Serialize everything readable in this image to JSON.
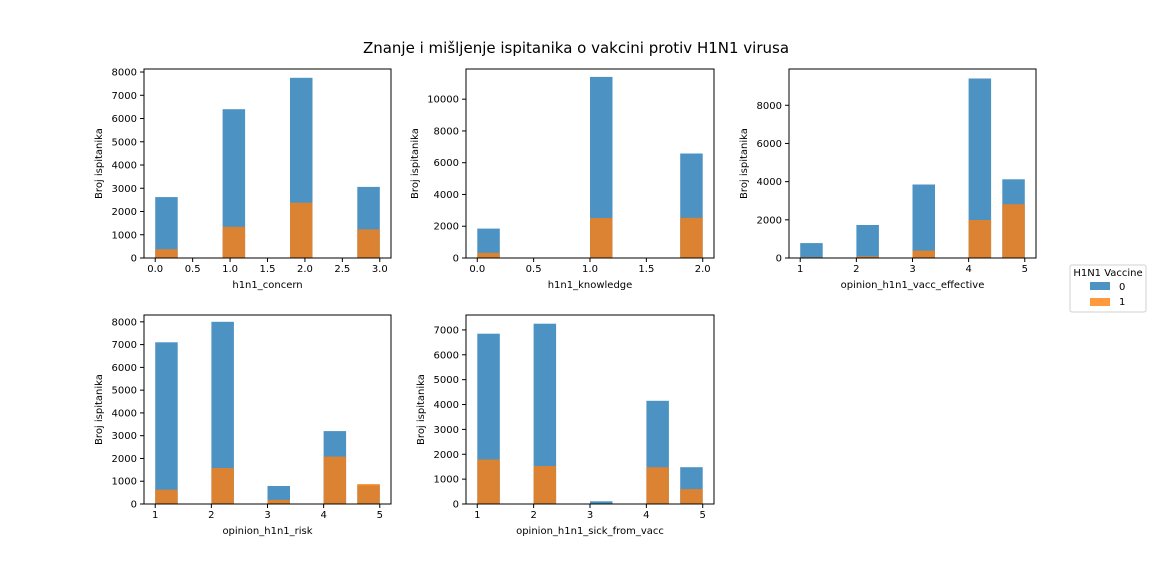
{
  "title": "Znanje i mišljenje ispitanika o vakcini protiv H1N1 virusa",
  "legend": {
    "title": "H1N1 Vaccine",
    "entries": [
      {
        "label": "0",
        "color": "#1f77b4"
      },
      {
        "label": "1",
        "color": "#ff7f0e"
      }
    ]
  },
  "chart_data": [
    {
      "type": "bar",
      "xlabel": "h1n1_concern",
      "ylabel": "Broj ispitanika",
      "xlim": [
        -0.15,
        3.15
      ],
      "ylim": [
        0,
        8130
      ],
      "xticks": [
        0.0,
        0.5,
        1.0,
        1.5,
        2.0,
        2.5,
        3.0
      ],
      "xtick_labels": [
        "0.0",
        "0.5",
        "1.0",
        "1.5",
        "2.0",
        "2.5",
        "3.0"
      ],
      "yticks": [
        0,
        1000,
        2000,
        3000,
        4000,
        5000,
        6000,
        7000,
        8000
      ],
      "ytick_labels": [
        "0",
        "1000",
        "2000",
        "3000",
        "4000",
        "5000",
        "6000",
        "7000",
        "8000"
      ],
      "bar_edges": [
        [
          0.0,
          0.3
        ],
        [
          0.9,
          1.2
        ],
        [
          1.8,
          2.1
        ],
        [
          2.7,
          3.0
        ]
      ],
      "series": [
        {
          "name": "0",
          "values": [
            2620,
            6400,
            7750,
            3060
          ]
        },
        {
          "name": "1",
          "values": [
            380,
            1340,
            2380,
            1230
          ]
        }
      ]
    },
    {
      "type": "bar",
      "xlabel": "h1n1_knowledge",
      "ylabel": "Broj ispitanika",
      "xlim": [
        -0.1,
        2.1
      ],
      "ylim": [
        0,
        11900
      ],
      "xticks": [
        0.0,
        0.5,
        1.0,
        1.5,
        2.0
      ],
      "xtick_labels": [
        "0.0",
        "0.5",
        "1.0",
        "1.5",
        "2.0"
      ],
      "yticks": [
        0,
        2000,
        4000,
        6000,
        8000,
        10000
      ],
      "ytick_labels": [
        "0",
        "2000",
        "4000",
        "6000",
        "8000",
        "10000"
      ],
      "bar_edges": [
        [
          0.0,
          0.2
        ],
        [
          1.0,
          1.2
        ],
        [
          1.8,
          2.0
        ]
      ],
      "series": [
        {
          "name": "0",
          "values": [
            1850,
            11400,
            6580
          ]
        },
        {
          "name": "1",
          "values": [
            330,
            2520,
            2530
          ]
        }
      ]
    },
    {
      "type": "bar",
      "xlabel": "opinion_h1n1_vacc_effective",
      "ylabel": "Broj ispitanika",
      "xlim": [
        0.8,
        5.2
      ],
      "ylim": [
        0,
        9900
      ],
      "xticks": [
        1,
        2,
        3,
        4,
        5
      ],
      "xtick_labels": [
        "1",
        "2",
        "3",
        "4",
        "5"
      ],
      "yticks": [
        0,
        2000,
        4000,
        6000,
        8000
      ],
      "ytick_labels": [
        "0",
        "2000",
        "4000",
        "6000",
        "8000"
      ],
      "bar_edges": [
        [
          1.0,
          1.4
        ],
        [
          1.4,
          1.8
        ],
        [
          2.0,
          2.4
        ],
        [
          2.4,
          2.8
        ],
        [
          3.0,
          3.4
        ],
        [
          3.4,
          3.8
        ],
        [
          4.0,
          4.4
        ],
        [
          4.4,
          4.8
        ],
        [
          4.6,
          5.0
        ]
      ],
      "bar_index_map": [
        0,
        null,
        1,
        null,
        2,
        null,
        3,
        null,
        4
      ],
      "categories": [
        "1",
        "2",
        "3",
        "4",
        "5"
      ],
      "series": [
        {
          "name": "0",
          "values": [
            780,
            1730,
            3850,
            9400,
            4120
          ]
        },
        {
          "name": "1",
          "values": [
            40,
            90,
            390,
            1990,
            2820
          ]
        }
      ]
    },
    {
      "type": "bar",
      "xlabel": "opinion_h1n1_risk",
      "ylabel": "Broj ispitanika",
      "xlim": [
        0.8,
        5.2
      ],
      "ylim": [
        0,
        8300
      ],
      "xticks": [
        1,
        2,
        3,
        4,
        5
      ],
      "xtick_labels": [
        "1",
        "2",
        "3",
        "4",
        "5"
      ],
      "yticks": [
        0,
        1000,
        2000,
        3000,
        4000,
        5000,
        6000,
        7000,
        8000
      ],
      "ytick_labels": [
        "0",
        "1000",
        "2000",
        "3000",
        "4000",
        "5000",
        "6000",
        "7000",
        "8000"
      ],
      "categories": [
        "1",
        "2",
        "3",
        "4",
        "5"
      ],
      "series": [
        {
          "name": "0",
          "values": [
            7100,
            8000,
            790,
            3200,
            820
          ]
        },
        {
          "name": "1",
          "values": [
            630,
            1580,
            180,
            2080,
            880
          ]
        }
      ]
    },
    {
      "type": "bar",
      "xlabel": "opinion_h1n1_sick_from_vacc",
      "ylabel": "Broj ispitanika",
      "xlim": [
        0.8,
        5.2
      ],
      "ylim": [
        0,
        7600
      ],
      "xticks": [
        1,
        2,
        3,
        4,
        5
      ],
      "xtick_labels": [
        "1",
        "2",
        "3",
        "4",
        "5"
      ],
      "yticks": [
        0,
        1000,
        2000,
        3000,
        4000,
        5000,
        6000,
        7000
      ],
      "ytick_labels": [
        "0",
        "1000",
        "2000",
        "3000",
        "4000",
        "5000",
        "6000",
        "7000"
      ],
      "categories": [
        "1",
        "2",
        "3",
        "4",
        "5"
      ],
      "series": [
        {
          "name": "0",
          "values": [
            6850,
            7250,
            110,
            4150,
            1480
          ]
        },
        {
          "name": "1",
          "values": [
            1790,
            1530,
            20,
            1480,
            600
          ]
        }
      ]
    }
  ]
}
